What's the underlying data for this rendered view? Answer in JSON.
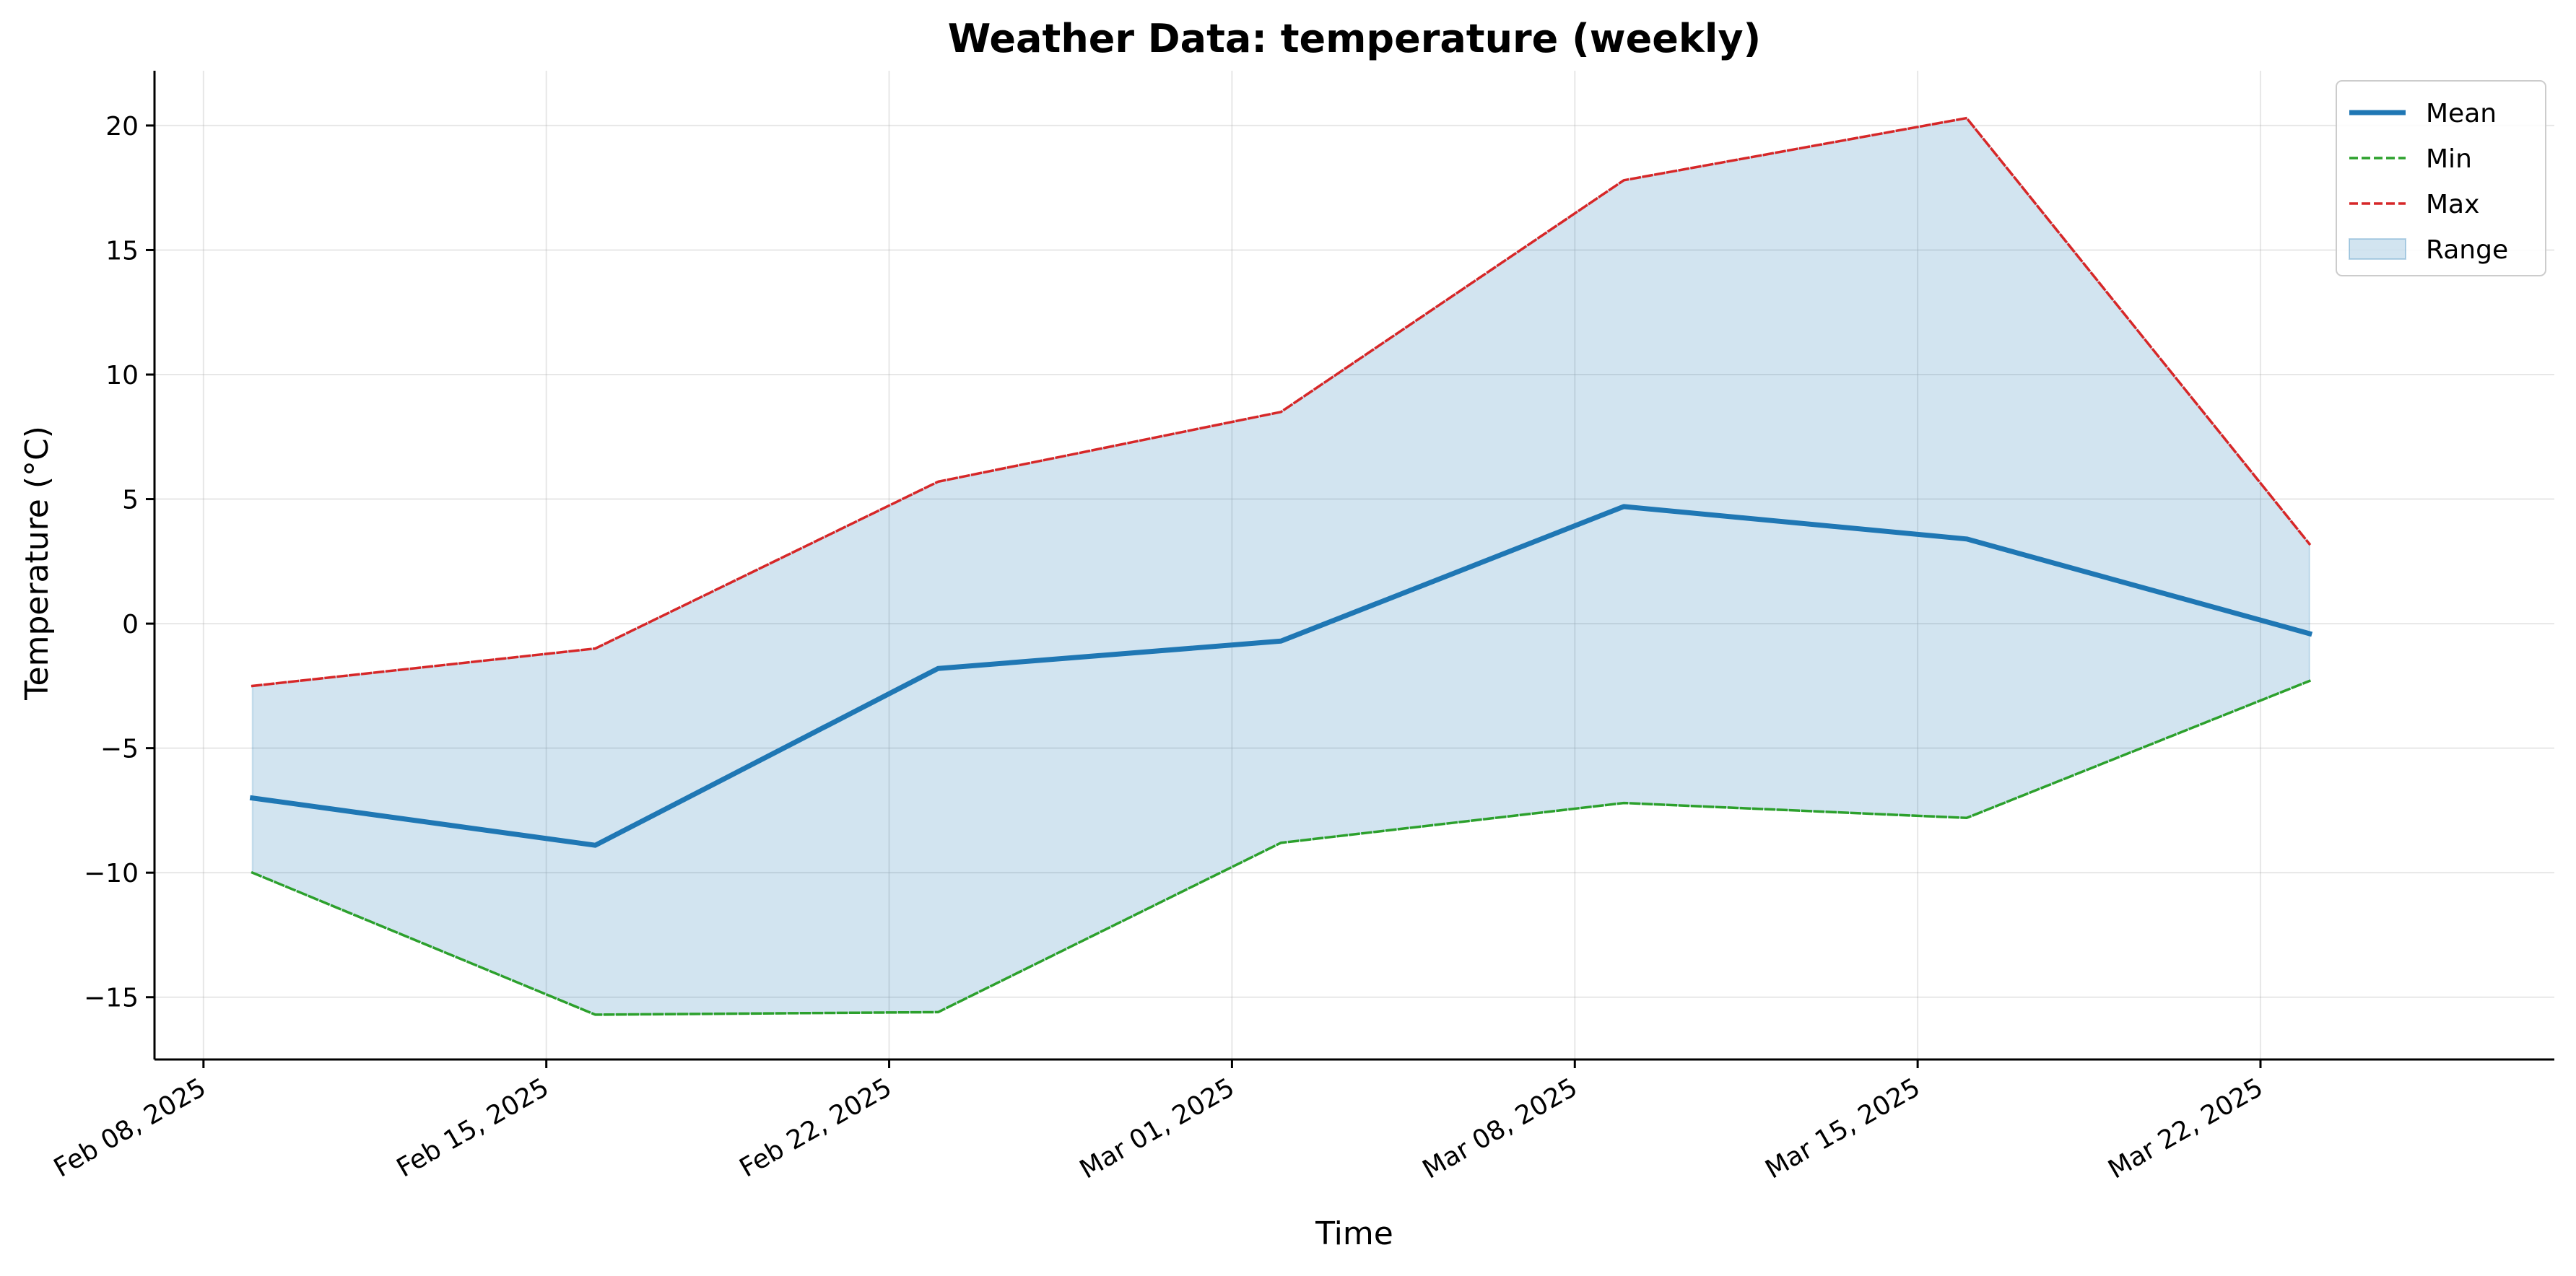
{
  "chart_data": {
    "type": "line",
    "title": "Weather Data: temperature (weekly)",
    "xlabel": "Time",
    "ylabel": "Temperature (°C)",
    "x": [
      "2025-02-09",
      "2025-02-16",
      "2025-02-23",
      "2025-03-02",
      "2025-03-09",
      "2025-03-16",
      "2025-03-23"
    ],
    "series": [
      {
        "name": "Mean",
        "values": [
          -7.0,
          -8.9,
          -1.8,
          -0.7,
          4.7,
          3.4,
          -0.4
        ],
        "color": "#1f77b4",
        "style": "solid"
      },
      {
        "name": "Min",
        "values": [
          -10.0,
          -15.7,
          -15.6,
          -8.8,
          -7.2,
          -7.8,
          -2.3
        ],
        "color": "#2ca02c",
        "style": "dashed"
      },
      {
        "name": "Max",
        "values": [
          -2.5,
          -1.0,
          5.7,
          8.5,
          17.8,
          20.3,
          3.2
        ],
        "color": "#d62728",
        "style": "dashed"
      }
    ],
    "range_band": {
      "name": "Range",
      "lower_series": "Min",
      "upper_series": "Max",
      "color": "#1f77b4",
      "opacity": 0.2
    },
    "xlim": [
      "2025-02-07",
      "2025-03-28"
    ],
    "ylim": [
      -17.5,
      22.2
    ],
    "x_ticks": [
      {
        "date": "2025-02-08",
        "label": "Feb 08, 2025"
      },
      {
        "date": "2025-02-15",
        "label": "Feb 15, 2025"
      },
      {
        "date": "2025-02-22",
        "label": "Feb 22, 2025"
      },
      {
        "date": "2025-03-01",
        "label": "Mar 01, 2025"
      },
      {
        "date": "2025-03-08",
        "label": "Mar 08, 2025"
      },
      {
        "date": "2025-03-15",
        "label": "Mar 15, 2025"
      },
      {
        "date": "2025-03-22",
        "label": "Mar 22, 2025"
      }
    ],
    "y_ticks": [
      {
        "value": 20,
        "label": "20"
      },
      {
        "value": 15,
        "label": "15"
      },
      {
        "value": 10,
        "label": "10"
      },
      {
        "value": 5,
        "label": "5"
      },
      {
        "value": 0,
        "label": "0"
      },
      {
        "value": -5,
        "label": "−5"
      },
      {
        "value": -10,
        "label": "−10"
      },
      {
        "value": -15,
        "label": "−15"
      }
    ],
    "grid": true,
    "legend": {
      "position": "top-right",
      "entries": [
        "Mean",
        "Min",
        "Max",
        "Range"
      ]
    }
  }
}
